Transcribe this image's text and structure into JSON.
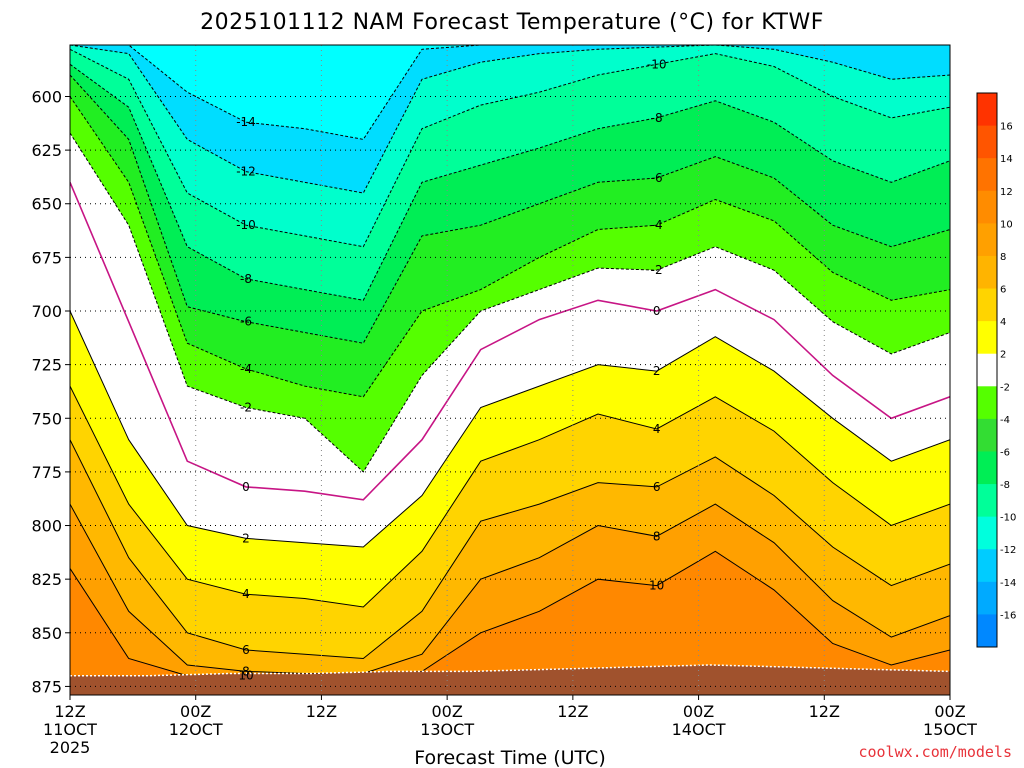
{
  "chart_data": {
    "type": "heatmap",
    "title": "2025101112 NAM Forecast Temperature (°C) for KTWF",
    "xlabel": "Forecast Time (UTC)",
    "ylabel": "",
    "x_ticks": [
      {
        "time": "12Z",
        "date": "11OCT",
        "year": "2025",
        "hour": 0
      },
      {
        "time": "00Z",
        "date": "12OCT",
        "year": "",
        "hour": 12
      },
      {
        "time": "12Z",
        "date": "",
        "year": "",
        "hour": 24
      },
      {
        "time": "00Z",
        "date": "13OCT",
        "year": "",
        "hour": 36
      },
      {
        "time": "12Z",
        "date": "",
        "year": "",
        "hour": 48
      },
      {
        "time": "00Z",
        "date": "14OCT",
        "year": "",
        "hour": 60
      },
      {
        "time": "12Z",
        "date": "",
        "year": "",
        "hour": 72
      },
      {
        "time": "00Z",
        "date": "15OCT",
        "year": "",
        "hour": 84
      }
    ],
    "xlim": [
      0,
      84
    ],
    "y_ticks": [
      600,
      625,
      650,
      675,
      700,
      725,
      750,
      775,
      800,
      825,
      850,
      875
    ],
    "ylim": [
      576,
      879
    ],
    "y_reversed": true,
    "grid": true,
    "colorbar": {
      "placement": "right",
      "labels": [
        "16",
        "14",
        "12",
        "10",
        "8",
        "6",
        "4",
        "2",
        "-2",
        "-4",
        "-6",
        "-8",
        "-10",
        "-12",
        "-14",
        "-16"
      ],
      "colors": [
        "#ff3300",
        "#ff5500",
        "#ff7300",
        "#ff8c00",
        "#ffa000",
        "#ffb400",
        "#ffd400",
        "#ffff00",
        "#ffffff",
        "#55ff00",
        "#33dd33",
        "#00ee55",
        "#00ff99",
        "#00ffdd",
        "#00ccff",
        "#00aaff",
        "#0088ff"
      ]
    },
    "ground": {
      "color": "#a0522d",
      "pressure_top": [
        870,
        870,
        869,
        869,
        868,
        868,
        867,
        866,
        865,
        866,
        867,
        868
      ]
    },
    "isotherms": [
      {
        "value": 0,
        "color": "#c71585",
        "label": "0",
        "pressure": [
          640,
          705,
          770,
          782,
          784,
          788,
          760,
          718,
          704,
          695,
          700,
          690,
          704,
          730,
          750,
          740
        ]
      },
      {
        "value": -2,
        "color": "#000000",
        "dashed": true,
        "label": "-2",
        "pressure": [
          617,
          660,
          735,
          745,
          750,
          775,
          730,
          700,
          690,
          680,
          681,
          670,
          681,
          705,
          720,
          710
        ]
      },
      {
        "value": -4,
        "color": "#000000",
        "dashed": true,
        "label": "-4",
        "pressure": [
          600,
          640,
          715,
          727,
          735,
          740,
          700,
          690,
          675,
          662,
          660,
          648,
          658,
          682,
          695,
          690
        ]
      },
      {
        "value": -6,
        "color": "#000000",
        "dashed": true,
        "label": "-6",
        "pressure": [
          590,
          620,
          698,
          705,
          710,
          715,
          665,
          660,
          650,
          640,
          638,
          628,
          638,
          660,
          670,
          662
        ]
      },
      {
        "value": -8,
        "color": "#000000",
        "dashed": true,
        "label": "-8",
        "pressure": [
          585,
          605,
          670,
          685,
          690,
          695,
          640,
          632,
          624,
          615,
          610,
          602,
          612,
          630,
          640,
          630
        ]
      },
      {
        "value": -10,
        "color": "#000000",
        "dashed": true,
        "label": "-10",
        "pressure": [
          578,
          592,
          645,
          660,
          665,
          670,
          615,
          604,
          598,
          590,
          585,
          580,
          586,
          600,
          610,
          605
        ]
      },
      {
        "value": -12,
        "color": "#000000",
        "dashed": true,
        "label": "-12",
        "pressure": [
          576,
          580,
          620,
          635,
          640,
          645,
          592,
          584,
          580,
          578,
          577,
          576,
          578,
          584,
          592,
          590
        ]
      },
      {
        "value": -14,
        "color": "#000000",
        "dashed": true,
        "label": "-14",
        "pressure": [
          576,
          576,
          598,
          612,
          615,
          620,
          578,
          576,
          576,
          576,
          576,
          576,
          576,
          576,
          576,
          576
        ]
      },
      {
        "value": 2,
        "color": "#000000",
        "label": "2",
        "pressure": [
          700,
          760,
          800,
          806,
          808,
          810,
          786,
          745,
          735,
          725,
          728,
          712,
          728,
          750,
          770,
          760
        ]
      },
      {
        "value": 4,
        "color": "#000000",
        "label": "4",
        "pressure": [
          735,
          790,
          825,
          832,
          834,
          838,
          812,
          770,
          760,
          748,
          755,
          740,
          756,
          780,
          800,
          790
        ]
      },
      {
        "value": 6,
        "color": "#000000",
        "label": "6",
        "pressure": [
          760,
          815,
          850,
          858,
          860,
          862,
          840,
          798,
          790,
          780,
          782,
          768,
          786,
          810,
          828,
          818
        ]
      },
      {
        "value": 8,
        "color": "#000000",
        "label": "8",
        "pressure": [
          790,
          840,
          865,
          868,
          869,
          869,
          860,
          825,
          815,
          800,
          805,
          790,
          808,
          835,
          852,
          842
        ]
      },
      {
        "value": 10,
        "color": "#000000",
        "label": "10",
        "pressure": [
          820,
          862,
          870,
          870,
          870,
          870,
          868,
          850,
          840,
          825,
          828,
          812,
          830,
          855,
          865,
          858
        ]
      }
    ]
  },
  "credit": "coolwx.com/models"
}
